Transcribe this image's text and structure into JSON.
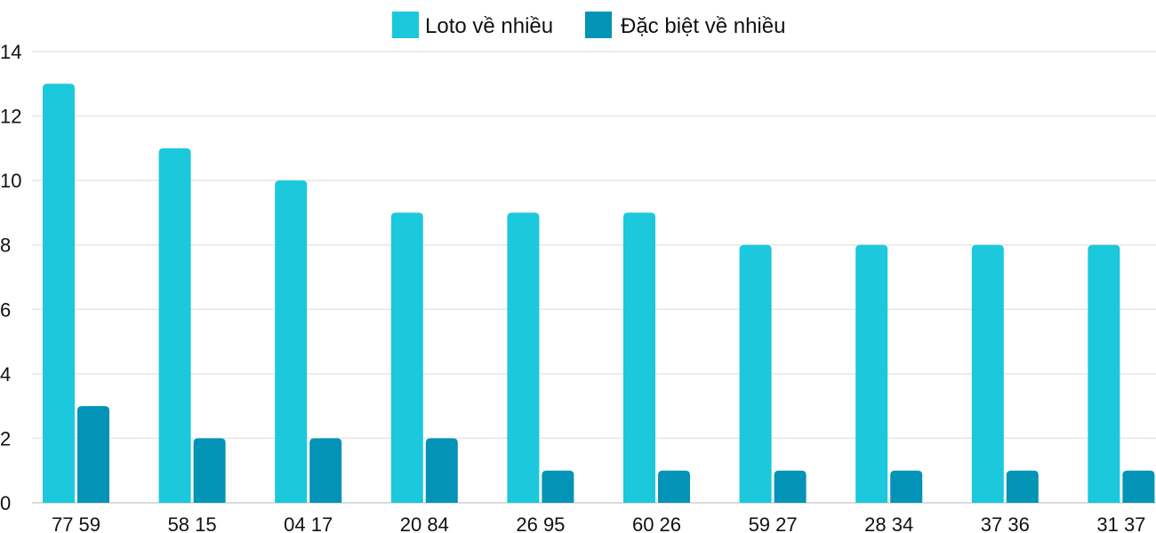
{
  "chart_data": {
    "type": "bar",
    "title": "",
    "xlabel": "",
    "ylabel": "",
    "categories": [
      "77 59",
      "58 15",
      "04 17",
      "20 84",
      "26 95",
      "60 26",
      "59 27",
      "28 34",
      "37 36",
      "31 37"
    ],
    "series": [
      {
        "name": "Loto về nhiều",
        "color": "#1bc8dc",
        "values": [
          13,
          11,
          10,
          9,
          9,
          9,
          8,
          8,
          8,
          8
        ]
      },
      {
        "name": "Đặc biệt về nhiều",
        "color": "#0393b7",
        "values": [
          3,
          2,
          2,
          2,
          1,
          1,
          1,
          1,
          1,
          1
        ]
      }
    ],
    "ylim": [
      0,
      14
    ],
    "yticks": [
      0,
      2,
      4,
      6,
      8,
      10,
      12,
      14
    ],
    "grid": true,
    "legend": "top-center"
  }
}
